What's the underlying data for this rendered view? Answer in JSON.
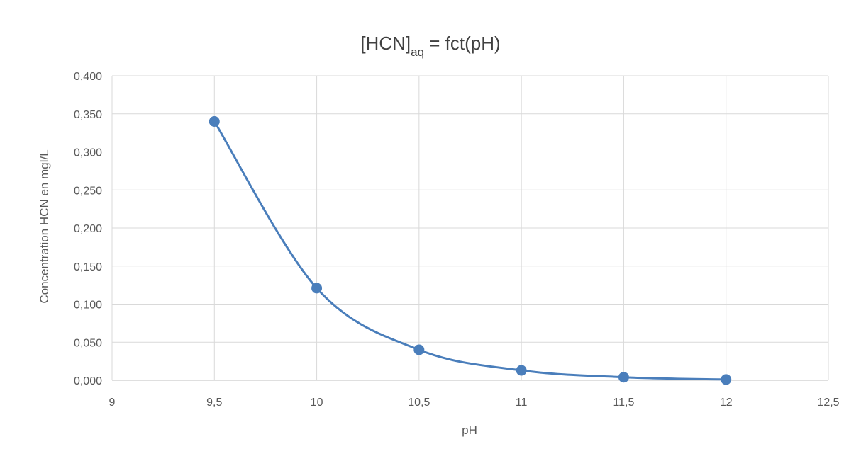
{
  "chart_data": {
    "type": "scatter",
    "title_main": "[HCN]",
    "title_sub": "aq",
    "title_rest": " = fct(pH)",
    "xlabel": "pH",
    "ylabel": "Concentration HCN en mgl/L",
    "xlim": [
      9,
      12.5
    ],
    "ylim": [
      0,
      0.4
    ],
    "x_ticks": [
      9,
      9.5,
      10,
      10.5,
      11,
      11.5,
      12,
      12.5
    ],
    "x_tick_labels": [
      "9",
      "9,5",
      "10",
      "10,5",
      "11",
      "11,5",
      "12",
      "12,5"
    ],
    "y_ticks": [
      0,
      0.05,
      0.1,
      0.15,
      0.2,
      0.25,
      0.3,
      0.35,
      0.4
    ],
    "y_tick_labels": [
      "0,000",
      "0,050",
      "0,100",
      "0,150",
      "0,200",
      "0,250",
      "0,300",
      "0,350",
      "0,400"
    ],
    "grid": true,
    "smooth_line": true,
    "series": [
      {
        "color": "#4a7ebb",
        "x": [
          9.5,
          10,
          10.5,
          11,
          11.5,
          12
        ],
        "y": [
          0.34,
          0.121,
          0.04,
          0.013,
          0.004,
          0.001
        ]
      }
    ]
  }
}
